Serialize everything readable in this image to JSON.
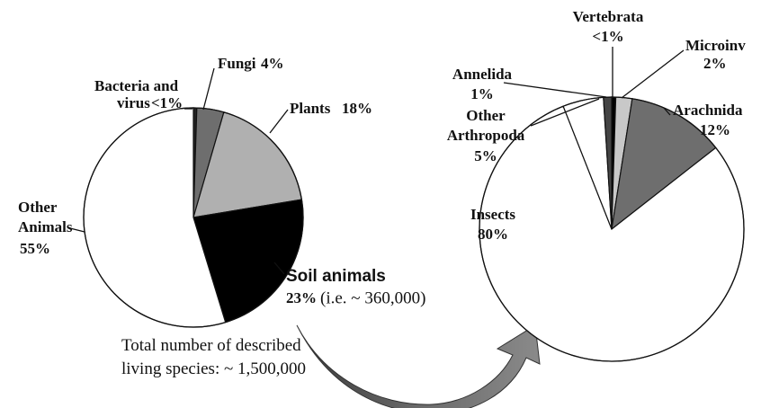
{
  "chart_data": [
    {
      "type": "pie",
      "categories": [
        "Bacteria and virus",
        "Fungi",
        "Plants",
        "Soil animals",
        "Other Animals"
      ],
      "values": [
        0.5,
        4,
        18,
        23,
        55
      ],
      "value_labels": [
        "<1%",
        "4%",
        "18%",
        "23%",
        "55%"
      ],
      "colors": [
        "#222222",
        "#6e6e6e",
        "#b0b0b0",
        "#000000",
        "#ffffff"
      ],
      "annotations": [
        "(i.e. ~ 360,000)",
        "Total number of described living species: ~ 1,500,000"
      ]
    },
    {
      "type": "pie",
      "categories": [
        "Vertebrata",
        "Microinv",
        "Arachnida",
        "Insects",
        "Other Arthropoda",
        "Annelida"
      ],
      "values": [
        0.5,
        2,
        12,
        80,
        5,
        1
      ],
      "value_labels": [
        "<1%",
        "2%",
        "12%",
        "80%",
        "5%",
        "1%"
      ],
      "colors": [
        "#000000",
        "#c8c8c8",
        "#6e6e6e",
        "#ffffff",
        "#ffffff",
        "#444444"
      ]
    }
  ]
}
